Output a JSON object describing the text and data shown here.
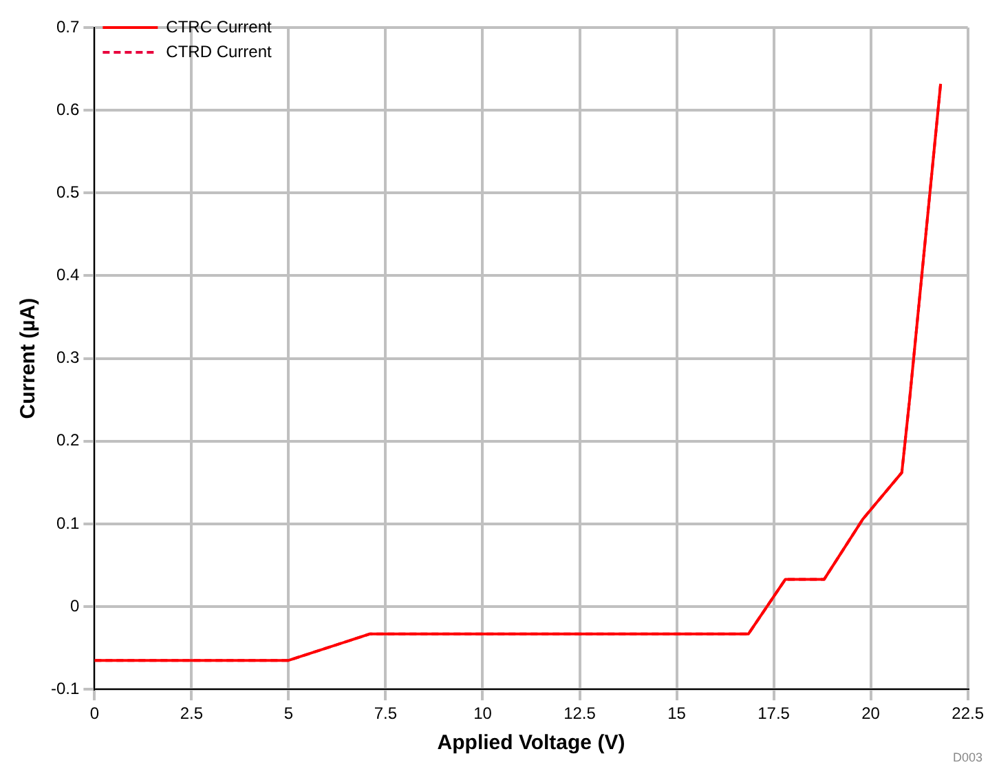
{
  "chart_data": {
    "type": "line",
    "xlabel": "Applied Voltage (V)",
    "ylabel": "Current (µA)",
    "xlim": [
      0,
      22.5
    ],
    "xticks": [
      0,
      2.5,
      5,
      7.5,
      10,
      12.5,
      15,
      17.5,
      20,
      22.5
    ],
    "ylim": [
      -0.1,
      0.7
    ],
    "yticks": [
      -0.1,
      0,
      0.1,
      0.2,
      0.3,
      0.4,
      0.5,
      0.6,
      0.7
    ],
    "grid": true,
    "legend": "top left",
    "annotations": [
      "D003"
    ],
    "x": [
      0,
      5,
      7.1,
      16.85,
      17.8,
      18.8,
      19.8,
      20.8,
      21.0,
      21.8
    ],
    "series": [
      {
        "name": "CTRC Current",
        "color": "#ff0000",
        "line_style": "solid",
        "values": [
          -0.065,
          -0.065,
          -0.033,
          -0.033,
          0.033,
          0.033,
          0.106,
          0.162,
          0.25,
          0.632
        ]
      },
      {
        "name": "CTRD Current",
        "color": "#e8003c",
        "line_style": "dashed",
        "values": [
          -0.065,
          -0.065,
          -0.033,
          -0.033,
          0.033,
          0.033,
          0.106,
          0.162,
          0.25,
          0.632
        ]
      }
    ]
  }
}
